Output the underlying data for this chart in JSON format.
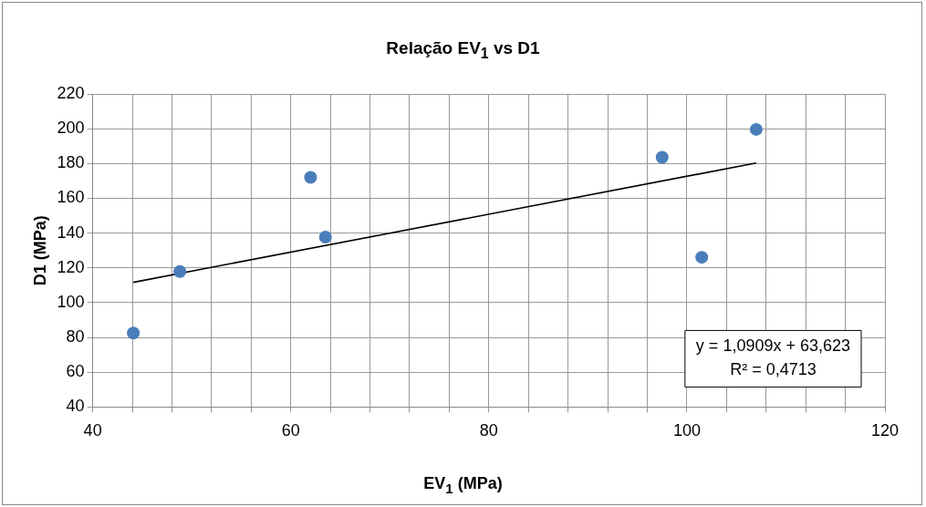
{
  "chart_data": {
    "type": "scatter",
    "title": "Relação EV$_{1}$ vs D1",
    "xlabel": "EV$_{1}$ (MPa)",
    "ylabel": "D1 (MPa)",
    "x": [
      44.1,
      48.8,
      62.0,
      63.5,
      97.5,
      101.5,
      107.0
    ],
    "series": [
      {
        "type": "scatter",
        "color": "#4a7ebb",
        "marker": "circle",
        "values": [
          82.5,
          117.9,
          172,
          137.7,
          183.6,
          126.1,
          199.6
        ]
      },
      {
        "type": "line",
        "color": "#000000",
        "marker": "none",
        "line_style": "solid",
        "x": [
          44.1,
          107.0
        ],
        "values": [
          111.7,
          180.3
        ]
      }
    ],
    "xlim": [
      40,
      120
    ],
    "ylim": [
      40,
      220
    ],
    "xticks": [
      40,
      {
        "value": 44,
        "label": null
      },
      {
        "value": 48,
        "label": null
      },
      {
        "value": 52,
        "label": null
      },
      {
        "value": 56,
        "label": null
      },
      60,
      {
        "value": 64,
        "label": null
      },
      {
        "value": 68,
        "label": null
      },
      {
        "value": 72,
        "label": null
      },
      {
        "value": 76,
        "label": null
      },
      80,
      {
        "value": 84,
        "label": null
      },
      {
        "value": 88,
        "label": null
      },
      {
        "value": 92,
        "label": null
      },
      {
        "value": 96,
        "label": null
      },
      100,
      {
        "value": 104,
        "label": null
      },
      {
        "value": 108,
        "label": null
      },
      {
        "value": 112,
        "label": null
      },
      {
        "value": 116,
        "label": null
      },
      120
    ],
    "yticks": [
      40,
      60,
      80,
      100,
      120,
      140,
      160,
      180,
      200,
      220
    ],
    "grid": true,
    "legend": false,
    "annotations": [
      "y = 1,0909x + 63,623\nR² = 0,4713"
    ]
  }
}
